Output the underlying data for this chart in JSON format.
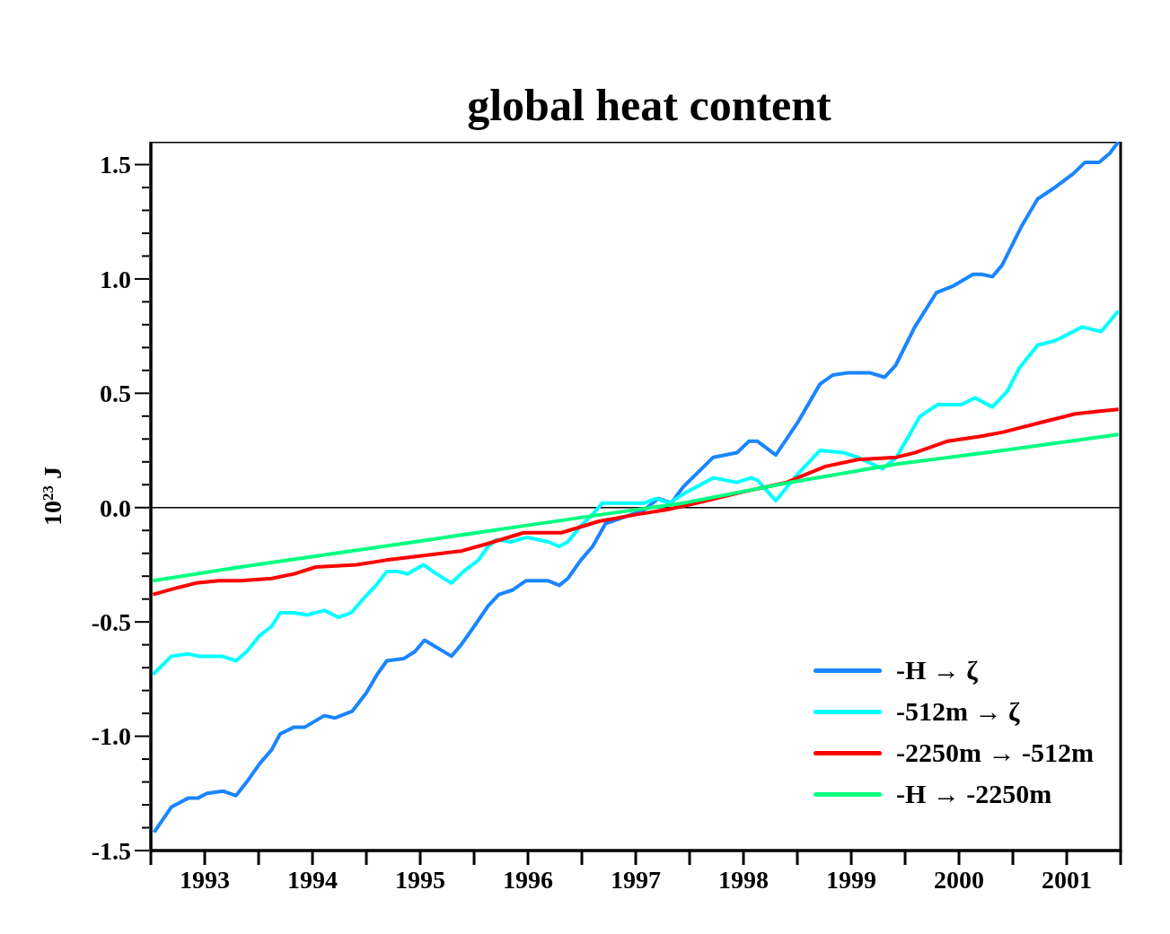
{
  "chart_data": {
    "type": "line",
    "title": "global heat content",
    "ylabel": "10$^{23}$ J",
    "xlim": [
      1993,
      2002
    ],
    "xticks": [
      {
        "value": 1993,
        "label": null
      },
      {
        "value": 1993.5,
        "label": "1993"
      },
      {
        "value": 1994,
        "label": null
      },
      {
        "value": 1994.5,
        "label": "1994"
      },
      {
        "value": 1995,
        "label": null
      },
      {
        "value": 1995.5,
        "label": "1995"
      },
      {
        "value": 1996,
        "label": null
      },
      {
        "value": 1996.5,
        "label": "1996"
      },
      {
        "value": 1997,
        "label": null
      },
      {
        "value": 1997.5,
        "label": "1997"
      },
      {
        "value": 1998,
        "label": null
      },
      {
        "value": 1998.5,
        "label": "1998"
      },
      {
        "value": 1999,
        "label": null
      },
      {
        "value": 1999.5,
        "label": "1999"
      },
      {
        "value": 2000,
        "label": null
      },
      {
        "value": 2000.5,
        "label": "2000"
      },
      {
        "value": 2001,
        "label": null
      },
      {
        "value": 2001.5,
        "label": "2001"
      },
      {
        "value": 2002,
        "label": null
      }
    ],
    "ylim": [
      -1.5,
      1.6
    ],
    "yticks": [
      {
        "value": -1.5,
        "label": "-1.5"
      },
      {
        "value": -1.4,
        "label": null
      },
      {
        "value": -1.3,
        "label": null
      },
      {
        "value": -1.2,
        "label": null
      },
      {
        "value": -1.1,
        "label": null
      },
      {
        "value": -1.0,
        "label": "-1.0"
      },
      {
        "value": -0.9,
        "label": null
      },
      {
        "value": -0.8,
        "label": null
      },
      {
        "value": -0.7,
        "label": null
      },
      {
        "value": -0.6,
        "label": null
      },
      {
        "value": -0.5,
        "label": "-0.5"
      },
      {
        "value": -0.4,
        "label": null
      },
      {
        "value": -0.3,
        "label": null
      },
      {
        "value": -0.2,
        "label": null
      },
      {
        "value": -0.1,
        "label": null
      },
      {
        "value": 0,
        "label": "0.0"
      },
      {
        "value": 0.1,
        "label": null
      },
      {
        "value": 0.2,
        "label": null
      },
      {
        "value": 0.3,
        "label": null
      },
      {
        "value": 0.4,
        "label": null
      },
      {
        "value": 0.5,
        "label": "0.5"
      },
      {
        "value": 0.6,
        "label": null
      },
      {
        "value": 0.7,
        "label": null
      },
      {
        "value": 0.8,
        "label": null
      },
      {
        "value": 0.9,
        "label": null
      },
      {
        "value": 1.0,
        "label": "1.0"
      },
      {
        "value": 1.1,
        "label": null
      },
      {
        "value": 1.2,
        "label": null
      },
      {
        "value": 1.3,
        "label": null
      },
      {
        "value": 1.4,
        "label": null
      },
      {
        "value": 1.5,
        "label": "1.5"
      }
    ],
    "ref_lines": [
      {
        "axis": "y",
        "value": 0,
        "color": "#000000"
      }
    ],
    "legend": "bottom right",
    "grid": false,
    "marker": "none",
    "line_style": "solid",
    "series": [
      {
        "name": "-H → ζ",
        "color": "#1a85ff",
        "x": [
          1993.03,
          1993.19,
          1993.35,
          1993.44,
          1993.52,
          1993.67,
          1993.79,
          1993.89,
          1994.01,
          1994.12,
          1994.2,
          1994.33,
          1994.43,
          1994.61,
          1994.71,
          1994.87,
          1995.0,
          1995.1,
          1995.19,
          1995.35,
          1995.45,
          1995.54,
          1995.79,
          1995.88,
          1996.0,
          1996.13,
          1996.23,
          1996.36,
          1996.48,
          1996.69,
          1996.79,
          1996.87,
          1996.99,
          1997.1,
          1997.22,
          1997.58,
          1997.71,
          1997.83,
          1997.94,
          1998.22,
          1998.44,
          1998.55,
          1998.63,
          1998.8,
          1999.0,
          1999.21,
          1999.33,
          1999.48,
          1999.67,
          1999.81,
          1999.91,
          2000.09,
          2000.29,
          2000.45,
          2000.63,
          2000.71,
          2000.81,
          2000.9,
          2001.08,
          2001.23,
          2001.39,
          2001.56,
          2001.67,
          2001.8,
          2001.9,
          2001.98
        ],
        "values": [
          -1.42,
          -1.31,
          -1.27,
          -1.27,
          -1.25,
          -1.24,
          -1.26,
          -1.2,
          -1.12,
          -1.06,
          -0.99,
          -0.96,
          -0.96,
          -0.91,
          -0.92,
          -0.89,
          -0.81,
          -0.73,
          -0.67,
          -0.66,
          -0.63,
          -0.58,
          -0.65,
          -0.6,
          -0.52,
          -0.43,
          -0.38,
          -0.36,
          -0.32,
          -0.32,
          -0.34,
          -0.31,
          -0.23,
          -0.17,
          -0.07,
          -0.01,
          0.04,
          0.02,
          0.09,
          0.22,
          0.24,
          0.29,
          0.29,
          0.23,
          0.37,
          0.54,
          0.58,
          0.59,
          0.59,
          0.57,
          0.62,
          0.79,
          0.94,
          0.97,
          1.02,
          1.02,
          1.01,
          1.06,
          1.23,
          1.35,
          1.4,
          1.46,
          1.51,
          1.51,
          1.55,
          1.6
        ]
      },
      {
        "name": "-512m → ζ",
        "color": "#00ffff",
        "x": [
          1993.02,
          1993.19,
          1993.35,
          1993.44,
          1993.66,
          1993.79,
          1993.89,
          1994.01,
          1994.12,
          1994.2,
          1994.33,
          1994.45,
          1994.61,
          1994.74,
          1994.86,
          1994.97,
          1995.09,
          1995.19,
          1995.3,
          1995.38,
          1995.53,
          1995.65,
          1995.79,
          1995.9,
          1996.04,
          1996.13,
          1996.21,
          1996.34,
          1996.49,
          1996.69,
          1996.79,
          1996.87,
          1996.99,
          1997.1,
          1997.19,
          1997.58,
          1997.69,
          1997.81,
          1997.98,
          1998.22,
          1998.44,
          1998.57,
          1998.63,
          1998.8,
          1999.01,
          1999.21,
          1999.43,
          1999.56,
          1999.79,
          1999.92,
          2000.14,
          2000.3,
          2000.52,
          2000.65,
          2000.81,
          2000.95,
          2001.06,
          2001.23,
          2001.39,
          2001.48,
          2001.64,
          2001.82,
          2001.98
        ],
        "values": [
          -0.73,
          -0.65,
          -0.64,
          -0.65,
          -0.65,
          -0.67,
          -0.63,
          -0.56,
          -0.52,
          -0.46,
          -0.46,
          -0.47,
          -0.45,
          -0.48,
          -0.46,
          -0.4,
          -0.34,
          -0.28,
          -0.28,
          -0.29,
          -0.25,
          -0.29,
          -0.33,
          -0.28,
          -0.23,
          -0.17,
          -0.14,
          -0.15,
          -0.13,
          -0.15,
          -0.17,
          -0.15,
          -0.08,
          -0.03,
          0.02,
          0.02,
          0.04,
          0.02,
          0.07,
          0.13,
          0.11,
          0.13,
          0.12,
          0.03,
          0.15,
          0.25,
          0.24,
          0.22,
          0.17,
          0.22,
          0.4,
          0.45,
          0.45,
          0.48,
          0.44,
          0.51,
          0.61,
          0.71,
          0.73,
          0.75,
          0.79,
          0.77,
          0.86
        ]
      },
      {
        "name": "-2250m → -512m",
        "color": "#ff0000",
        "x": [
          1993.02,
          1993.25,
          1993.42,
          1993.63,
          1993.83,
          1994.12,
          1994.33,
          1994.53,
          1994.91,
          1995.18,
          1995.53,
          1995.88,
          1996.11,
          1996.46,
          1996.81,
          1997.16,
          1997.51,
          1997.78,
          1998.07,
          1998.51,
          1998.9,
          1999.26,
          1999.56,
          1999.92,
          2000.09,
          2000.39,
          2000.68,
          2000.91,
          2001.24,
          2001.58,
          2001.77,
          2001.98
        ],
        "values": [
          -0.38,
          -0.35,
          -0.33,
          -0.32,
          -0.32,
          -0.31,
          -0.29,
          -0.26,
          -0.25,
          -0.23,
          -0.21,
          -0.19,
          -0.16,
          -0.11,
          -0.11,
          -0.06,
          -0.03,
          -0.01,
          0.02,
          0.07,
          0.11,
          0.18,
          0.21,
          0.22,
          0.24,
          0.29,
          0.31,
          0.33,
          0.37,
          0.41,
          0.42,
          0.43
        ]
      },
      {
        "name": "-H → -2250m",
        "color": "#00ff80",
        "x": [
          1993.02,
          1993.83,
          1994.71,
          1995.59,
          1996.46,
          1997.19,
          1997.94,
          1998.93,
          1999.92,
          2000.91,
          2001.98
        ],
        "values": [
          -0.32,
          -0.26,
          -0.2,
          -0.14,
          -0.08,
          -0.03,
          0.02,
          0.11,
          0.19,
          0.25,
          0.32
        ]
      }
    ]
  }
}
